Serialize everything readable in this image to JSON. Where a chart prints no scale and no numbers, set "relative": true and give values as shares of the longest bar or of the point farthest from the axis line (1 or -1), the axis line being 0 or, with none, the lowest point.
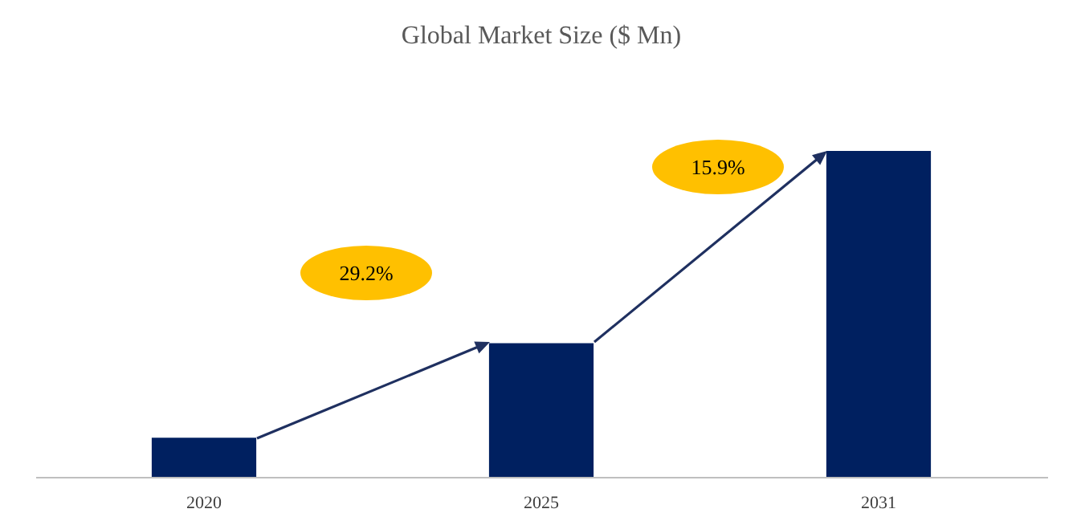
{
  "chart_data": {
    "type": "bar",
    "title": "Global Market Size ($ Mn)",
    "categories": [
      "2020",
      "2025",
      "2031"
    ],
    "values": [
      0.12,
      0.41,
      1
    ],
    "color": "#002060",
    "relative": true,
    "grid": false,
    "annotations": [
      "29.2%",
      "15.9%"
    ]
  }
}
